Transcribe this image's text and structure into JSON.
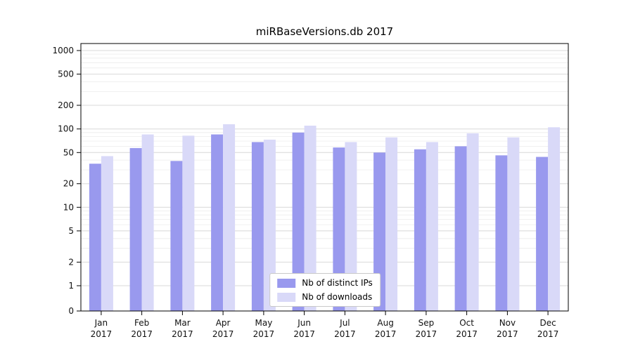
{
  "chart_data": {
    "type": "bar",
    "title": "miRBaseVersions.db 2017",
    "yscale": "symlog",
    "ylim": [
      0,
      1300
    ],
    "grid": true,
    "legend_position": "lower center",
    "y_ticks": [
      1000,
      500,
      200,
      100,
      50,
      20,
      10,
      5,
      2,
      1,
      0
    ],
    "categories": [
      "Jan",
      "Feb",
      "Mar",
      "Apr",
      "May",
      "Jun",
      "Jul",
      "Aug",
      "Sep",
      "Oct",
      "Nov",
      "Dec"
    ],
    "year_label": "2017",
    "series": [
      {
        "name": "Nb of distinct IPs",
        "color": "#9999ee",
        "values": [
          36,
          57,
          39,
          85,
          68,
          90,
          58,
          50,
          55,
          60,
          46,
          44
        ]
      },
      {
        "name": "Nb of downloads",
        "color": "#d9d9f8",
        "values": [
          45,
          85,
          82,
          115,
          73,
          110,
          68,
          78,
          68,
          88,
          78,
          105
        ]
      }
    ]
  },
  "style": {
    "major_grid_color": "#d8d8d8",
    "minor_grid_color": "#ececec",
    "axis_color": "#000000"
  }
}
